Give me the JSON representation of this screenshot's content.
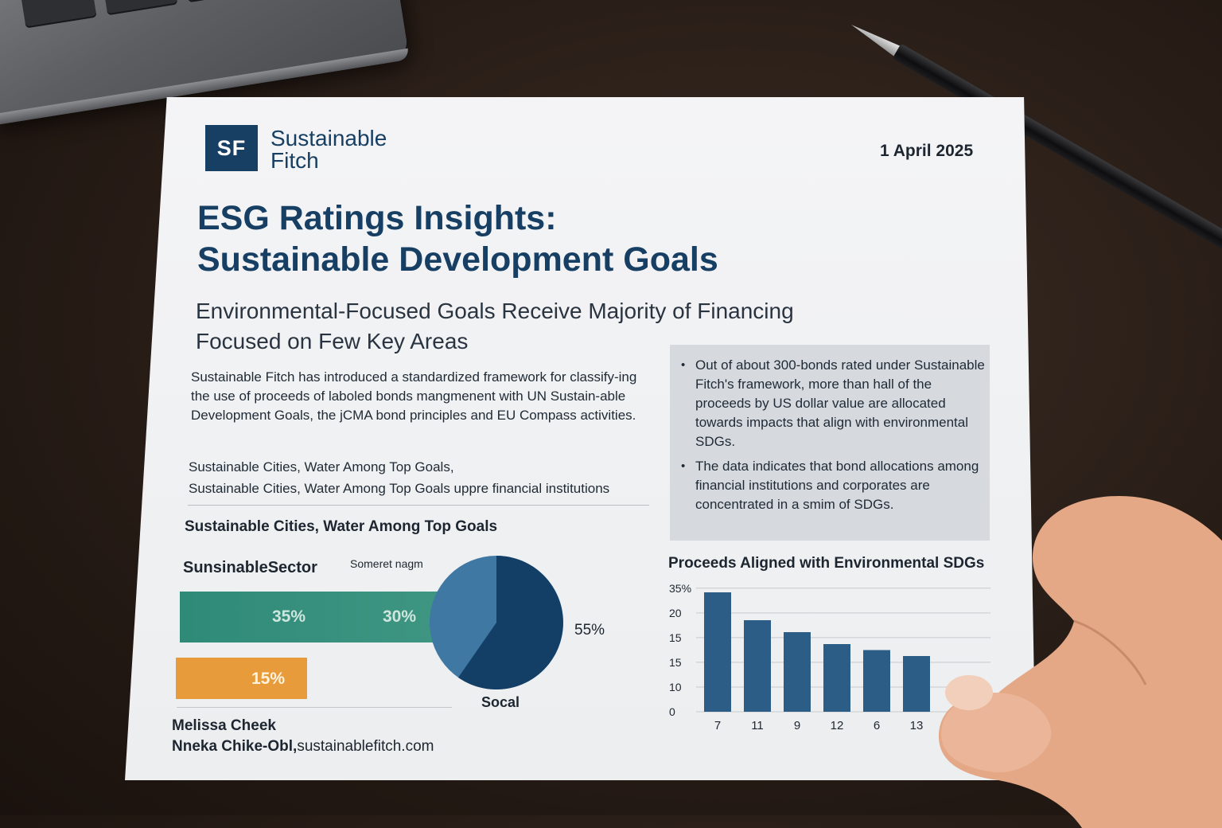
{
  "header": {
    "logo_mark": "SF",
    "brand_line1": "Sustainable",
    "brand_line2": "Fitch",
    "date": "1 April 2025"
  },
  "title": {
    "line1": "ESG Ratings Insights:",
    "line2": "Sustainable Development Goals"
  },
  "subtitle": {
    "line1": "Environmental-Focused Goals Receive Majority of Financing",
    "line2": "Focused on Few Key Areas"
  },
  "intro_text": "Sustainable Fitch has introduced a standardized framework for classify-ing the use of proceeds of laboled bonds mangmenent with UN Sustain-able Development Goals, the jCMA bond principles and EU Compass activities.",
  "top_goals": {
    "line1": "Sustainable Cities, Water Among Top Goals,",
    "line2": "Sustainable Cities, Water Among Top Goals uppre financial institutions"
  },
  "callout": {
    "bullet1": "Out of about 300-bonds rated under Sustainable Fitch's framework, more than hall of the proceeds by US dollar value are allocated towards impacts that align with environmental SDGs.",
    "bullet2": "The data indicates that bond allocations among financial institutions and corporates are concentrated in a smim of SDGs."
  },
  "left_chart": {
    "heading": "Sustainable Cities, Water Among Top Goals",
    "sector_label": "SunsinableSector",
    "note": "Someret nagm",
    "green_label_a": "35%",
    "green_label_b": "30%",
    "orange_label": "15%",
    "pie_label": "55%",
    "pie_caption": "Socal"
  },
  "chart_data": {
    "type": "bar",
    "title": "Proceeds Aligned with Environmental SDGs",
    "categories": [
      "7",
      "11",
      "9",
      "12",
      "6",
      "13"
    ],
    "values": [
      30,
      23,
      20,
      17,
      15.5,
      14
    ],
    "y_ticks": [
      "0",
      "10",
      "15",
      "15",
      "20",
      "35%"
    ],
    "color": "#2b5d86"
  },
  "authors": {
    "name1": "Melissa Cheek",
    "name2": "Nneka Chike-Obl,",
    "site": "sustainablefitch.com"
  },
  "colors": {
    "navy": "#173f63",
    "teal": "#2f8a78",
    "orange": "#e79b3b",
    "pie_dark": "#133f66",
    "pie_light": "#3f78a3"
  }
}
